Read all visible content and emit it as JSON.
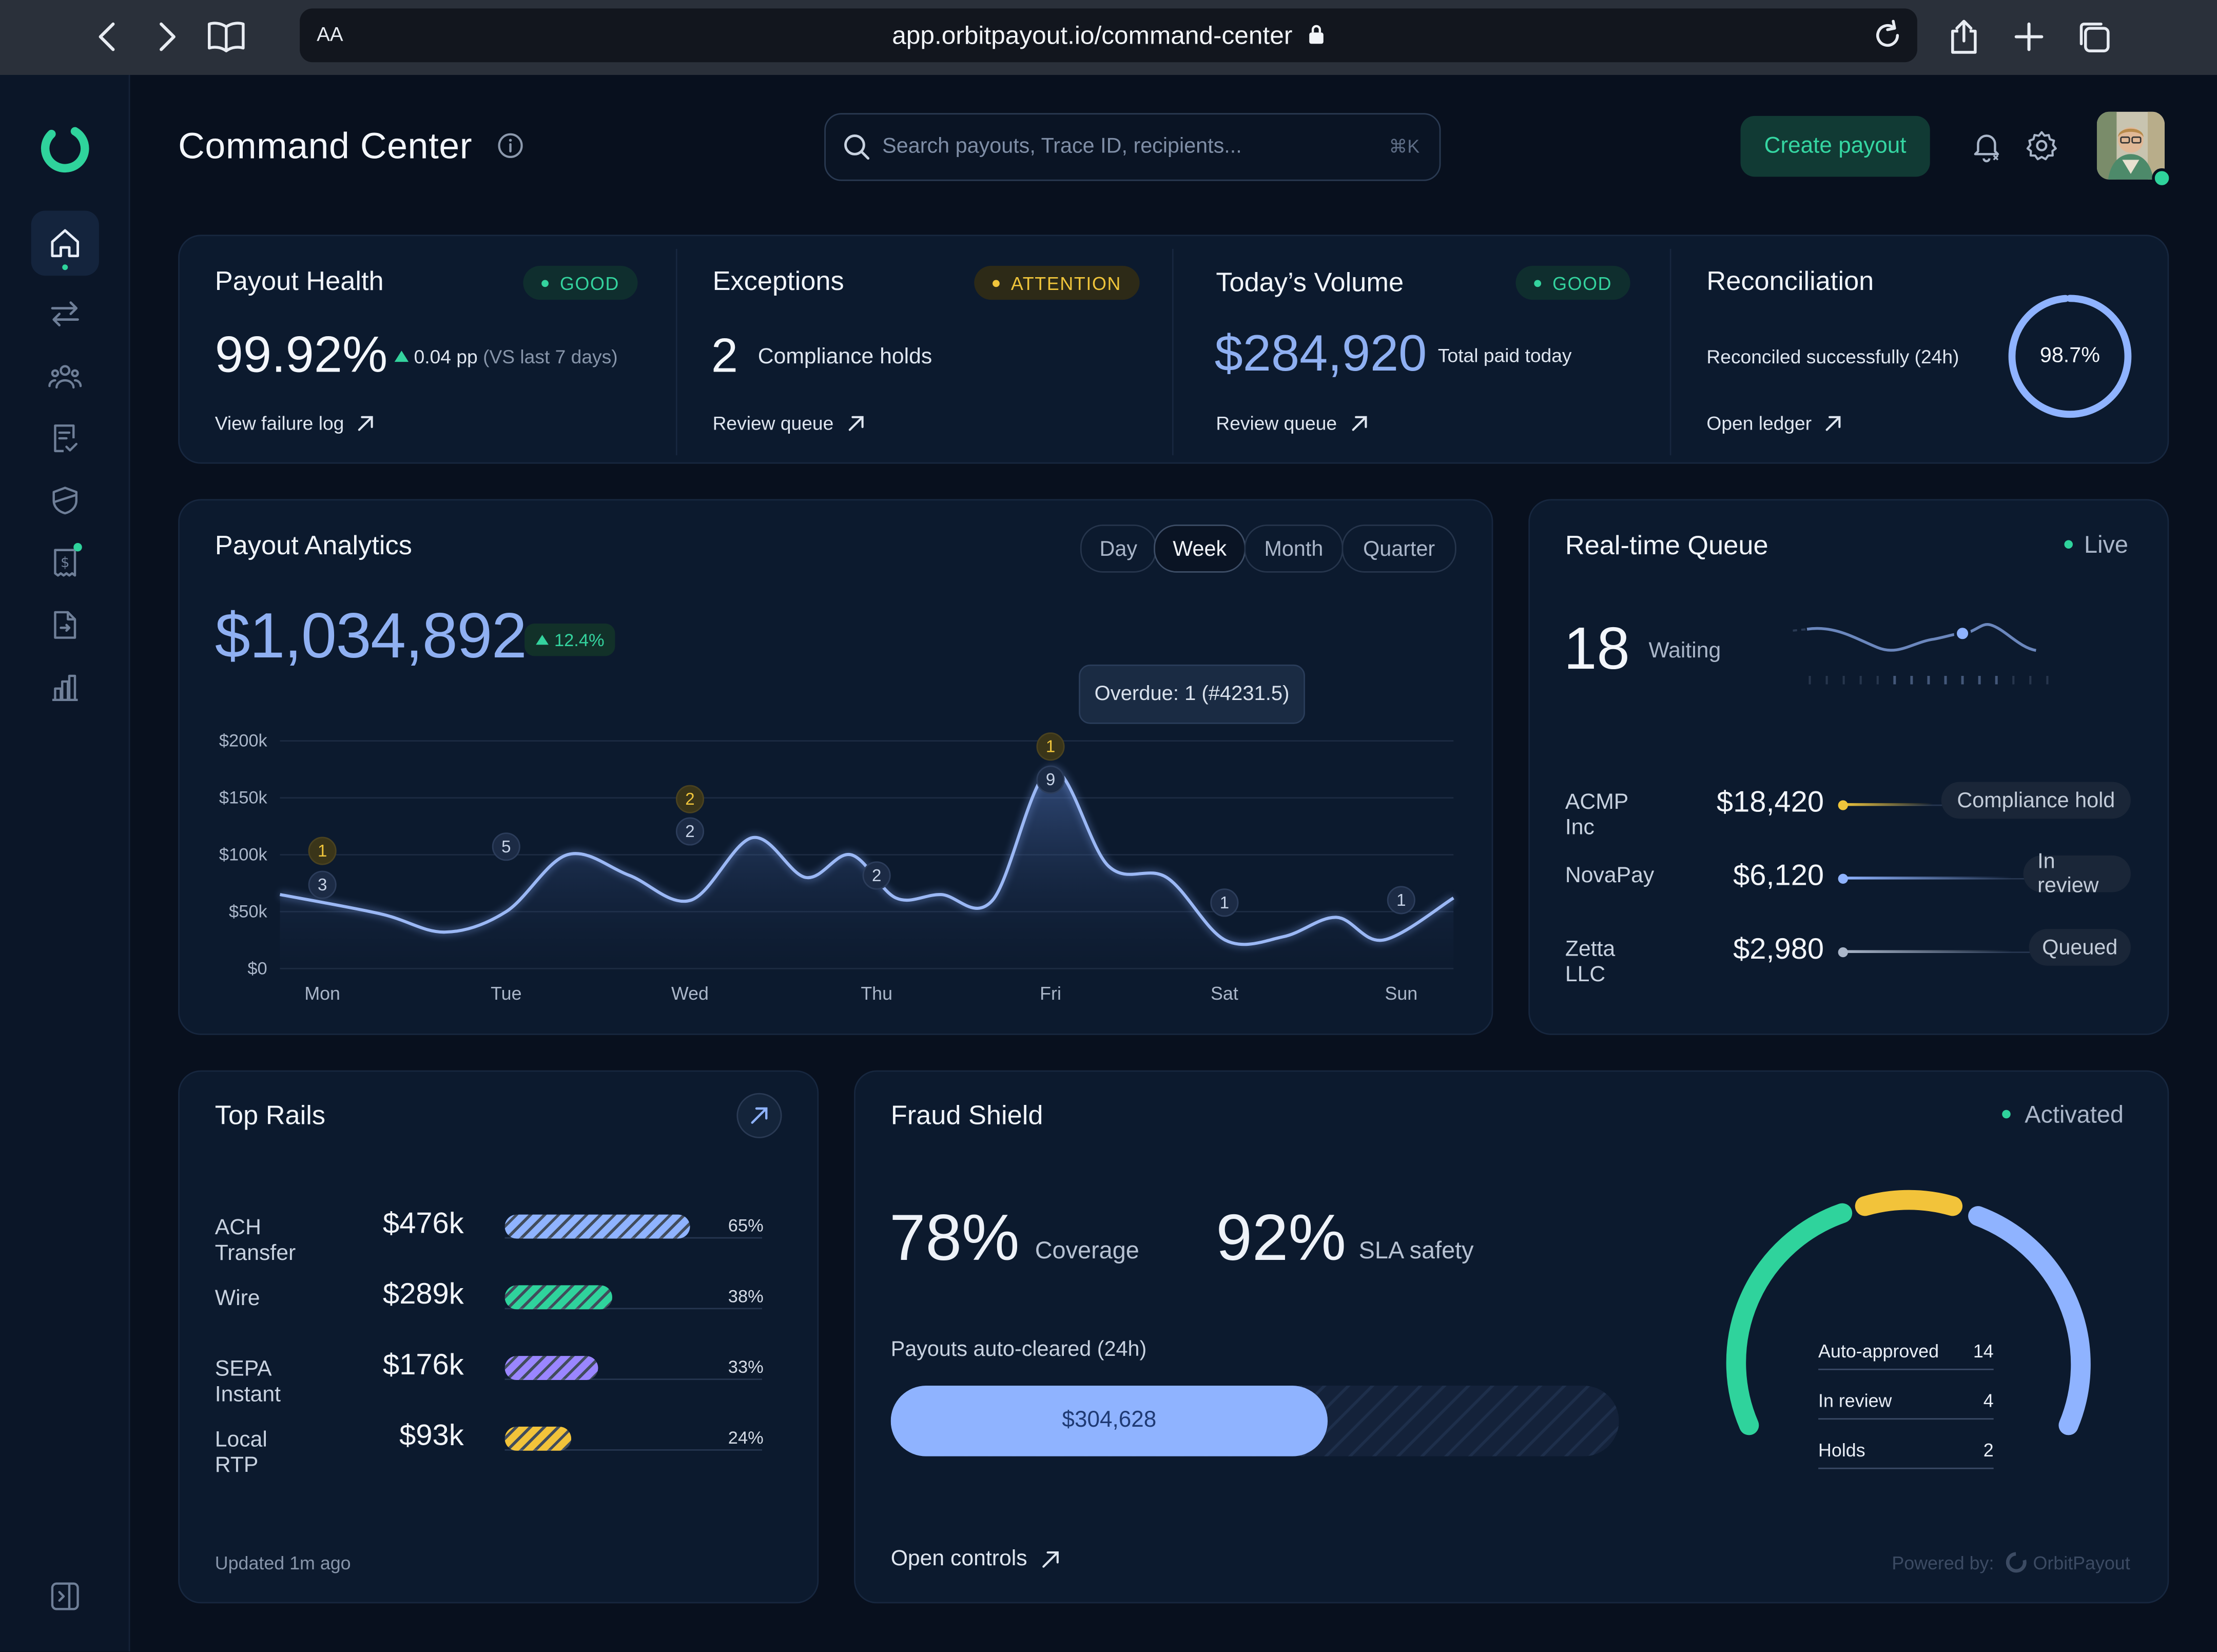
{
  "browser": {
    "text_size_label": "AA",
    "url": "app.orbitpayout.io/command-center"
  },
  "header": {
    "title": "Command Center",
    "search_placeholder": "Search payouts, Trace ID, recipients...",
    "search_shortcut": "⌘K",
    "create_button": "Create payout"
  },
  "kpis": {
    "payout_health": {
      "title": "Payout Health",
      "badge": "GOOD",
      "value": "99.92%",
      "delta": "0.04 pp",
      "delta_context": "(VS last 7 days)",
      "link": "View failure log"
    },
    "exceptions": {
      "title": "Exceptions",
      "badge": "ATTENTION",
      "count": "2",
      "label": "Compliance holds",
      "link": "Review queue"
    },
    "volume": {
      "title": "Today’s Volume",
      "badge": "GOOD",
      "value": "$284,920",
      "label": "Total paid today",
      "link": "Review queue"
    },
    "reconciliation": {
      "title": "Reconciliation",
      "label": "Reconciled successfully (24h)",
      "value": "98.7%",
      "progress": 0.987,
      "link": "Open ledger"
    }
  },
  "analytics": {
    "title": "Payout Analytics",
    "total": "$1,034,892",
    "change": "12.4%",
    "ranges": [
      "Day",
      "Week",
      "Month",
      "Quarter"
    ],
    "active_range": "Week",
    "tooltip": "Overdue: 1 (#4231.5)",
    "markers": [
      {
        "label": "1",
        "tone": "warn",
        "x": "Mon",
        "y": 122
      },
      {
        "label": "3",
        "tone": "info",
        "x": "Mon",
        "y": 82
      },
      {
        "label": "5",
        "tone": "info",
        "x": "Tue",
        "y": 127
      },
      {
        "label": "2",
        "tone": "warn",
        "x": "Wed",
        "y": 183
      },
      {
        "label": "2",
        "tone": "info",
        "x": "Wed",
        "y": 145
      },
      {
        "label": "2",
        "tone": "info",
        "x": "Thu",
        "y": 93
      },
      {
        "label": "1",
        "tone": "warn",
        "x": "Fri",
        "y": 245
      },
      {
        "label": "9",
        "tone": "info",
        "x": "Fri",
        "y": 206
      },
      {
        "label": "1",
        "tone": "info",
        "x": "Sat",
        "y": 61
      },
      {
        "label": "1",
        "tone": "info",
        "x": "Sun",
        "y": 64
      }
    ]
  },
  "chart_data": {
    "type": "area",
    "title": "Payout Analytics",
    "x": [
      "Mon",
      "Tue",
      "Wed",
      "Thu",
      "Fri",
      "Sat",
      "Sun"
    ],
    "y_ticks": [
      "$0",
      "$50k",
      "$100k",
      "$150k",
      "$200k"
    ],
    "ylim": [
      0,
      200000
    ],
    "series": [
      {
        "values": [
          [
            "Mon",
            65000
          ],
          [
            "Mon",
            48000
          ],
          [
            "Tue",
            32000
          ],
          [
            "Tue",
            50000
          ],
          [
            "Tue",
            100000
          ],
          [
            "Wed",
            82000
          ],
          [
            "Wed",
            60000
          ],
          [
            "Wed",
            115000
          ],
          [
            "Thu",
            80000
          ],
          [
            "Thu",
            100000
          ],
          [
            "Thu",
            62000
          ],
          [
            "Thu",
            65000
          ],
          [
            "Fri",
            60000
          ],
          [
            "Fri",
            175000
          ],
          [
            "Fri",
            90000
          ],
          [
            "Sat",
            80000
          ],
          [
            "Sat",
            25000
          ],
          [
            "Sat",
            28000
          ],
          [
            "Sun",
            45000
          ],
          [
            "Sun",
            25000
          ],
          [
            "Sun",
            62000
          ]
        ]
      }
    ],
    "grid": true,
    "legend": "none"
  },
  "queue": {
    "title": "Real-time Queue",
    "status": "Live",
    "waiting_count": "18",
    "waiting_label": "Waiting",
    "rows": [
      {
        "name": "ACMP Inc",
        "amount": "$18,420",
        "status": "Compliance hold",
        "color": "#f0c53b"
      },
      {
        "name": "NovaPay",
        "amount": "$6,120",
        "status": "In review",
        "color": "#8fb3ff"
      },
      {
        "name": "Zetta LLC",
        "amount": "$2,980",
        "status": "Queued",
        "color": "#aab6c9"
      }
    ]
  },
  "rails": {
    "title": "Top Rails",
    "items": [
      {
        "name": "ACH Transfer",
        "amount": "$476k",
        "pct": "65%",
        "fill": 0.72,
        "color": "#8fb3ff"
      },
      {
        "name": "Wire",
        "amount": "$289k",
        "pct": "38%",
        "fill": 0.42,
        "color": "#2fd39c"
      },
      {
        "name": "SEPA Instant",
        "amount": "$176k",
        "pct": "33%",
        "fill": 0.36,
        "color": "#9a86ff"
      },
      {
        "name": "Local RTP",
        "amount": "$93k",
        "pct": "24%",
        "fill": 0.26,
        "color": "#f2c33a"
      }
    ],
    "footer": "Updated 1m ago"
  },
  "fraud": {
    "title": "Fraud Shield",
    "status": "Activated",
    "coverage_value": "78%",
    "coverage_label": "Coverage",
    "sla_value": "92%",
    "sla_label": "SLA safety",
    "auto_label": "Payouts auto-cleared (24h)",
    "auto_amount": "$304,628",
    "auto_fill": 0.6,
    "legend": [
      {
        "label": "Auto-approved",
        "value": "14",
        "color": "#2fd39c"
      },
      {
        "label": "In review",
        "value": "4",
        "color": "#f0c53b"
      },
      {
        "label": "Holds",
        "value": "2",
        "color": "#8fb3ff"
      }
    ],
    "link": "Open controls",
    "powered_label": "Powered by:",
    "powered_brand": "OrbitPayout"
  }
}
